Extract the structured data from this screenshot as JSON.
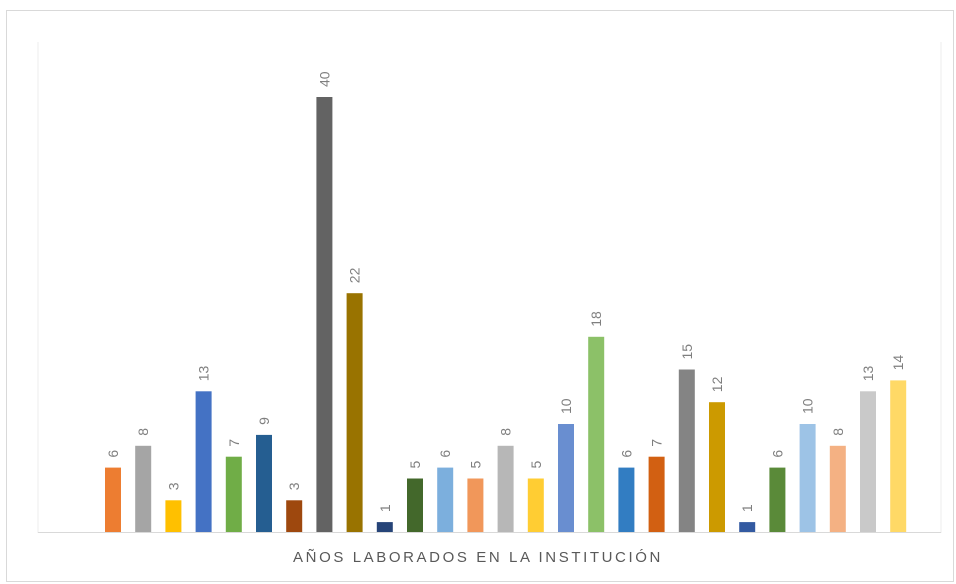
{
  "chart_data": {
    "type": "bar",
    "title": "",
    "xlabel": "AÑOS LABORADOS EN LA INSTITUCIÓN",
    "ylabel": "",
    "ylim": [
      0,
      40
    ],
    "grid": false,
    "legend": "none",
    "values": [
      6,
      8,
      3,
      13,
      7,
      9,
      3,
      40,
      22,
      1,
      5,
      6,
      5,
      8,
      5,
      10,
      18,
      6,
      7,
      15,
      12,
      1,
      6,
      10,
      8,
      13,
      14
    ],
    "colors": [
      "#ed7d31",
      "#a5a5a5",
      "#ffc000",
      "#4472c4",
      "#70ad47",
      "#255e91",
      "#9e480e",
      "#636363",
      "#997300",
      "#264478",
      "#43682b",
      "#7cafdd",
      "#f1975a",
      "#b7b7b7",
      "#ffcd33",
      "#698ed0",
      "#8cc168",
      "#327dc2",
      "#d26012",
      "#848484",
      "#cc9a00",
      "#335aa1",
      "#5a8a39",
      "#9dc3e6",
      "#f4b183",
      "#c9c9c9",
      "#ffd966"
    ],
    "label_color": "#7f7f7f",
    "axis_color": "#d9d9d9"
  }
}
